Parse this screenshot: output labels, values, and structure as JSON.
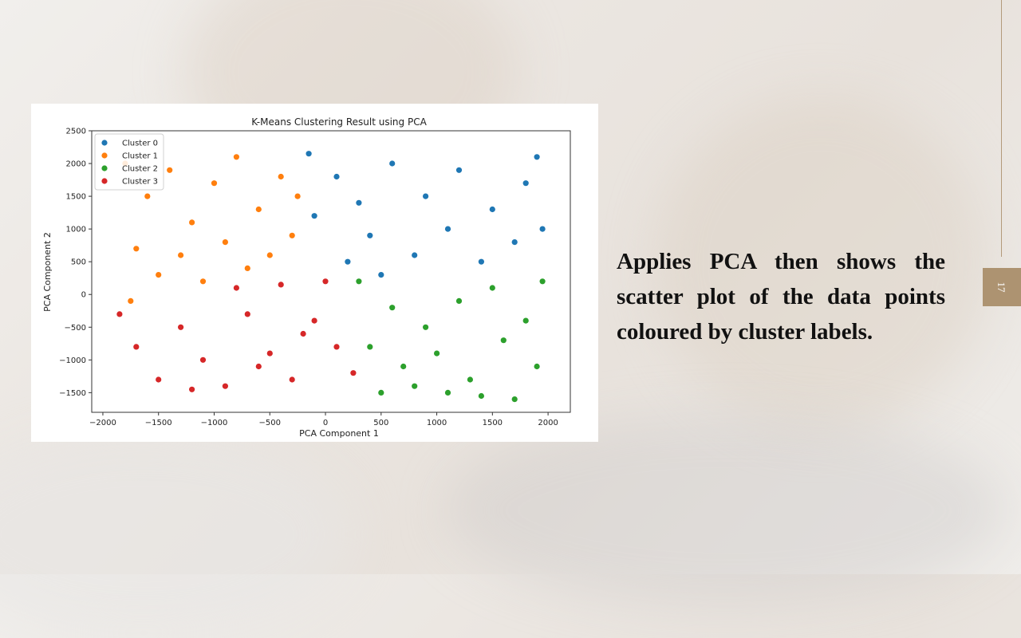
{
  "slide": {
    "caption": "Applies PCA then shows the scatter plot of the data points coloured by cluster labels.",
    "page_number": "17",
    "accent_color": "#ad9371"
  },
  "chart_data": {
    "type": "scatter",
    "title": "K-Means Clustering Result using PCA",
    "xlabel": "PCA Component 1",
    "ylabel": "PCA Component 2",
    "xlim": [
      -2100,
      2200
    ],
    "ylim": [
      -1800,
      2500
    ],
    "x_ticks": [
      -2000,
      -1500,
      -1000,
      -500,
      0,
      500,
      1000,
      1500,
      2000
    ],
    "y_ticks": [
      -1500,
      -1000,
      -500,
      0,
      500,
      1000,
      1500,
      2000,
      2500
    ],
    "x_tick_labels": [
      "−2000",
      "−1500",
      "−1000",
      "−500",
      "0",
      "500",
      "1000",
      "1500",
      "2000"
    ],
    "y_tick_labels": [
      "−1500",
      "−1000",
      "−500",
      "0",
      "500",
      "1000",
      "1500",
      "2000",
      "2500"
    ],
    "grid": false,
    "legend": "top-left",
    "series": [
      {
        "name": "Cluster 0",
        "color": "#1f77b4",
        "points": [
          [
            -150,
            2150
          ],
          [
            100,
            1800
          ],
          [
            300,
            1400
          ],
          [
            600,
            2000
          ],
          [
            900,
            1500
          ],
          [
            1200,
            1900
          ],
          [
            1500,
            1300
          ],
          [
            1800,
            1700
          ],
          [
            1950,
            1000
          ],
          [
            400,
            900
          ],
          [
            800,
            600
          ],
          [
            1100,
            1000
          ],
          [
            1400,
            500
          ],
          [
            1700,
            800
          ],
          [
            -100,
            1200
          ],
          [
            200,
            500
          ],
          [
            500,
            300
          ],
          [
            1900,
            2100
          ]
        ]
      },
      {
        "name": "Cluster 1",
        "color": "#ff7f0e",
        "points": [
          [
            -1800,
            2000
          ],
          [
            -1600,
            1500
          ],
          [
            -1400,
            1900
          ],
          [
            -1200,
            1100
          ],
          [
            -1000,
            1700
          ],
          [
            -800,
            2100
          ],
          [
            -600,
            1300
          ],
          [
            -400,
            1800
          ],
          [
            -300,
            900
          ],
          [
            -1700,
            700
          ],
          [
            -1500,
            300
          ],
          [
            -1300,
            600
          ],
          [
            -1100,
            200
          ],
          [
            -900,
            800
          ],
          [
            -700,
            400
          ],
          [
            -500,
            600
          ],
          [
            -1750,
            -100
          ],
          [
            -250,
            1500
          ]
        ]
      },
      {
        "name": "Cluster 2",
        "color": "#2ca02c",
        "points": [
          [
            300,
            200
          ],
          [
            600,
            -200
          ],
          [
            900,
            -500
          ],
          [
            1200,
            -100
          ],
          [
            1500,
            100
          ],
          [
            1800,
            -400
          ],
          [
            1950,
            200
          ],
          [
            400,
            -800
          ],
          [
            700,
            -1100
          ],
          [
            1000,
            -900
          ],
          [
            1300,
            -1300
          ],
          [
            1600,
            -700
          ],
          [
            1900,
            -1100
          ],
          [
            500,
            -1500
          ],
          [
            800,
            -1400
          ],
          [
            1100,
            -1500
          ],
          [
            1700,
            -1600
          ],
          [
            1400,
            -1550
          ]
        ]
      },
      {
        "name": "Cluster 3",
        "color": "#d62728",
        "points": [
          [
            -1850,
            -300
          ],
          [
            -1700,
            -800
          ],
          [
            -1500,
            -1300
          ],
          [
            -1300,
            -500
          ],
          [
            -1100,
            -1000
          ],
          [
            -900,
            -1400
          ],
          [
            -700,
            -300
          ],
          [
            -500,
            -900
          ],
          [
            -300,
            -1300
          ],
          [
            -100,
            -400
          ],
          [
            100,
            -800
          ],
          [
            250,
            -1200
          ],
          [
            -800,
            100
          ],
          [
            -400,
            150
          ],
          [
            0,
            200
          ],
          [
            -1200,
            -1450
          ],
          [
            -600,
            -1100
          ],
          [
            -200,
            -600
          ]
        ]
      }
    ]
  }
}
